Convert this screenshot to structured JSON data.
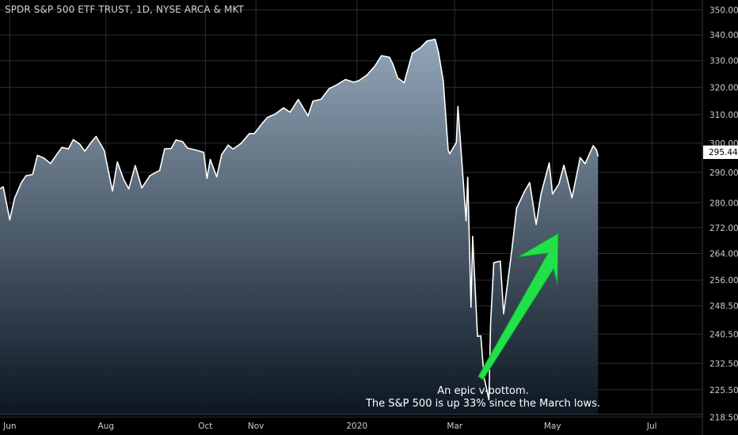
{
  "header": {
    "title": "SPDR S&P 500 ETF TRUST, 1D, NYSE ARCA & MKT"
  },
  "annotation": {
    "line1": "An epic v-bottom.",
    "line2": "The S&P 500 is up 33% since the March lows."
  },
  "colors": {
    "background": "#000000",
    "line": "#ffffff",
    "area_top": "#9aaec2",
    "area_bottom": "#0c1824",
    "grid": "#2a2e33",
    "arrow": "#22e04a",
    "price_tag_bg": "#ffffff"
  },
  "chart_data": {
    "type": "area",
    "scale": "log",
    "grid": true,
    "last_price_label": "295.44",
    "ylim": [
      214,
      354
    ],
    "y_ticks": [
      350,
      340,
      330,
      320,
      310,
      300,
      290,
      280,
      272,
      264,
      256,
      248.5,
      240.5,
      232.5,
      225.5,
      218.5
    ],
    "y_tick_labels": [
      "350.00",
      "340.00",
      "330.00",
      "320.00",
      "310.00",
      "300.00",
      "290.00",
      "280.00",
      "272.00",
      "264.00",
      "256.00",
      "248.50",
      "240.50",
      "232.50",
      "225.50",
      "218.50"
    ],
    "x_range": [
      "2019-05-28",
      "2020-07-31"
    ],
    "x_ticks": [
      {
        "date": "2019-06-03",
        "label": "Jun"
      },
      {
        "date": "2019-08-01",
        "label": "Aug"
      },
      {
        "date": "2019-10-01",
        "label": "Oct"
      },
      {
        "date": "2019-11-01",
        "label": "Nov"
      },
      {
        "date": "2020-01-02",
        "label": "2020"
      },
      {
        "date": "2020-03-02",
        "label": "Mar"
      },
      {
        "date": "2020-05-01",
        "label": "May"
      },
      {
        "date": "2020-07-01",
        "label": "Jul"
      }
    ],
    "series": [
      {
        "points": [
          [
            "2019-05-28",
            284.5
          ],
          [
            "2019-05-30",
            285.2
          ],
          [
            "2019-06-03",
            274.5
          ],
          [
            "2019-06-06",
            281.5
          ],
          [
            "2019-06-10",
            286.5
          ],
          [
            "2019-06-13",
            288.9
          ],
          [
            "2019-06-17",
            289.3
          ],
          [
            "2019-06-20",
            295.8
          ],
          [
            "2019-06-24",
            294.8
          ],
          [
            "2019-06-28",
            293.0
          ],
          [
            "2019-07-02",
            296.2
          ],
          [
            "2019-07-05",
            298.5
          ],
          [
            "2019-07-09",
            298.0
          ],
          [
            "2019-07-12",
            301.2
          ],
          [
            "2019-07-16",
            299.6
          ],
          [
            "2019-07-19",
            297.2
          ],
          [
            "2019-07-23",
            300.3
          ],
          [
            "2019-07-26",
            302.3
          ],
          [
            "2019-07-31",
            297.4
          ],
          [
            "2019-08-05",
            283.8
          ],
          [
            "2019-08-08",
            293.5
          ],
          [
            "2019-08-12",
            287.5
          ],
          [
            "2019-08-15",
            284.5
          ],
          [
            "2019-08-19",
            292.3
          ],
          [
            "2019-08-23",
            284.8
          ],
          [
            "2019-08-28",
            288.9
          ],
          [
            "2019-09-03",
            290.7
          ],
          [
            "2019-09-06",
            298.0
          ],
          [
            "2019-09-10",
            298.1
          ],
          [
            "2019-09-13",
            301.1
          ],
          [
            "2019-09-17",
            300.5
          ],
          [
            "2019-09-20",
            298.3
          ],
          [
            "2019-09-25",
            297.6
          ],
          [
            "2019-09-30",
            296.8
          ],
          [
            "2019-10-02",
            288.0
          ],
          [
            "2019-10-04",
            294.4
          ],
          [
            "2019-10-08",
            288.5
          ],
          [
            "2019-10-11",
            296.0
          ],
          [
            "2019-10-15",
            299.3
          ],
          [
            "2019-10-18",
            297.9
          ],
          [
            "2019-10-23",
            299.9
          ],
          [
            "2019-10-28",
            303.3
          ],
          [
            "2019-10-31",
            303.3
          ],
          [
            "2019-11-05",
            307.0
          ],
          [
            "2019-11-08",
            309.0
          ],
          [
            "2019-11-13",
            310.3
          ],
          [
            "2019-11-18",
            312.5
          ],
          [
            "2019-11-22",
            310.9
          ],
          [
            "2019-11-27",
            315.5
          ],
          [
            "2019-12-03",
            309.6
          ],
          [
            "2019-12-06",
            314.9
          ],
          [
            "2019-12-11",
            315.6
          ],
          [
            "2019-12-16",
            319.5
          ],
          [
            "2019-12-20",
            320.7
          ],
          [
            "2019-12-26",
            322.9
          ],
          [
            "2019-12-31",
            321.9
          ],
          [
            "2020-01-03",
            322.4
          ],
          [
            "2020-01-08",
            324.5
          ],
          [
            "2020-01-13",
            327.9
          ],
          [
            "2020-01-17",
            331.9
          ],
          [
            "2020-01-22",
            331.3
          ],
          [
            "2020-01-24",
            328.8
          ],
          [
            "2020-01-27",
            323.5
          ],
          [
            "2020-01-31",
            321.7
          ],
          [
            "2020-02-05",
            332.9
          ],
          [
            "2020-02-10",
            335.0
          ],
          [
            "2020-02-14",
            337.6
          ],
          [
            "2020-02-19",
            338.3
          ],
          [
            "2020-02-21",
            333.5
          ],
          [
            "2020-02-24",
            322.4
          ],
          [
            "2020-02-27",
            297.5
          ],
          [
            "2020-02-28",
            296.3
          ],
          [
            "2020-03-03",
            300.2
          ],
          [
            "2020-03-04",
            313.0
          ],
          [
            "2020-03-09",
            274.2
          ],
          [
            "2020-03-10",
            288.4
          ],
          [
            "2020-03-12",
            248.1
          ],
          [
            "2020-03-13",
            269.3
          ],
          [
            "2020-03-16",
            239.9
          ],
          [
            "2020-03-18",
            240.0
          ],
          [
            "2020-03-20",
            228.8
          ],
          [
            "2020-03-23",
            222.9
          ],
          [
            "2020-03-24",
            243.2
          ],
          [
            "2020-03-26",
            261.2
          ],
          [
            "2020-03-30",
            261.7
          ],
          [
            "2020-04-01",
            246.2
          ],
          [
            "2020-04-06",
            264.9
          ],
          [
            "2020-04-09",
            278.2
          ],
          [
            "2020-04-14",
            283.8
          ],
          [
            "2020-04-17",
            286.6
          ],
          [
            "2020-04-21",
            273.0
          ],
          [
            "2020-04-24",
            282.9
          ],
          [
            "2020-04-29",
            293.2
          ],
          [
            "2020-05-01",
            282.8
          ],
          [
            "2020-05-05",
            286.2
          ],
          [
            "2020-05-08",
            292.4
          ],
          [
            "2020-05-13",
            281.6
          ],
          [
            "2020-05-18",
            295.0
          ],
          [
            "2020-05-21",
            292.9
          ],
          [
            "2020-05-26",
            299.1
          ],
          [
            "2020-05-28",
            297.6
          ],
          [
            "2020-05-29",
            295.4
          ]
        ]
      }
    ]
  }
}
